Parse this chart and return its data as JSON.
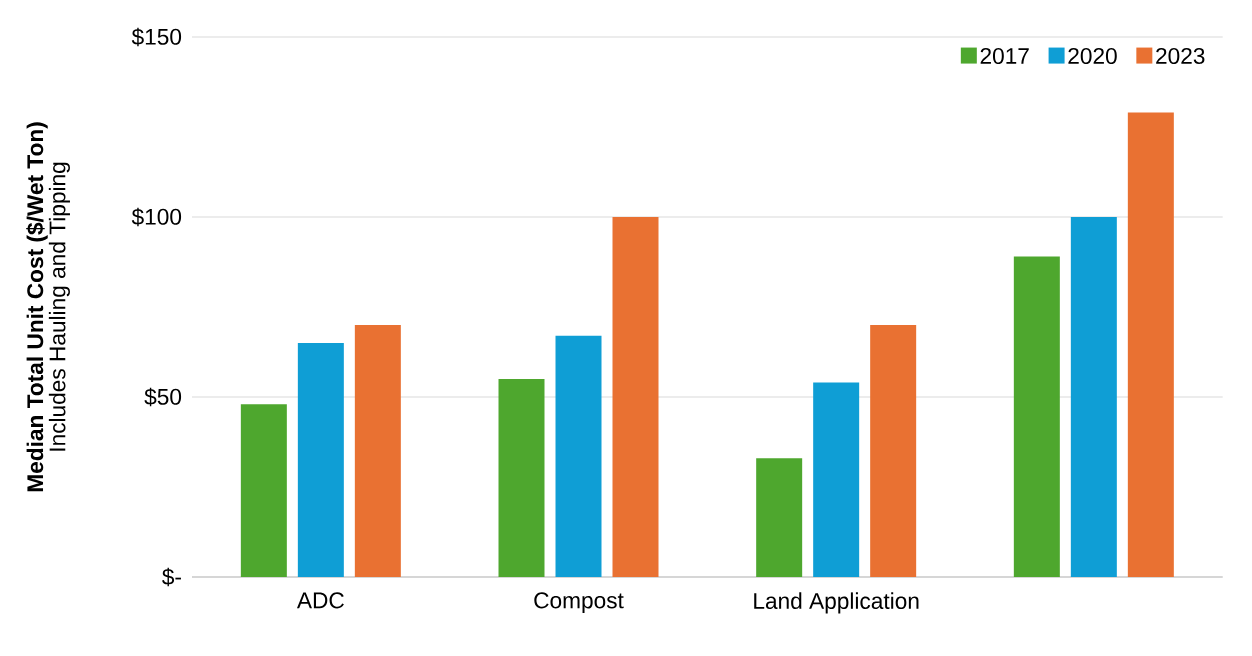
{
  "chart_data": {
    "type": "bar",
    "ylabel": "Median Total Unit Cost ($/Wet Ton)",
    "annotations": [
      "Includes Hauling and Tipping"
    ],
    "categories": [
      "ADC",
      "Compost",
      "Land Application",
      null
    ],
    "series": [
      {
        "name": "2017",
        "color": "#4ea72e",
        "values": [
          48,
          55,
          33,
          89
        ]
      },
      {
        "name": "2020",
        "color": "#0f9ed5",
        "values": [
          65,
          67,
          54,
          100
        ]
      },
      {
        "name": "2023",
        "color": "#e97132",
        "values": [
          70,
          100,
          70,
          129
        ]
      }
    ],
    "ylim": [
      0,
      150
    ],
    "yticks": [
      {
        "value": 0,
        "label": "$-"
      },
      {
        "value": 50,
        "label": "$50"
      },
      {
        "value": 100,
        "label": "$100"
      },
      {
        "value": 150,
        "label": "$150"
      }
    ],
    "grid": "y",
    "legend": "top right"
  }
}
